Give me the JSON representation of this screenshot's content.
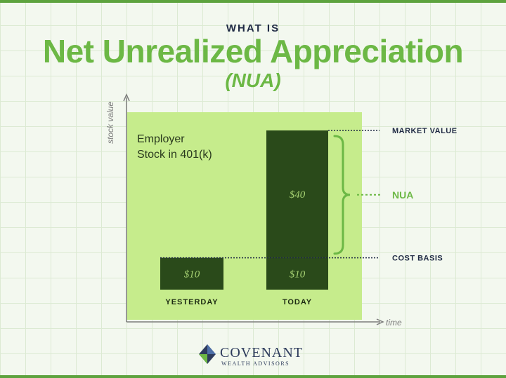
{
  "header": {
    "kicker": "WHAT IS",
    "title": "Net Unrealized Appreciation",
    "subtitle": "(NUA)"
  },
  "chart_data": {
    "type": "bar",
    "stacked": true,
    "categories": [
      "YESTERDAY",
      "TODAY"
    ],
    "series": [
      {
        "values": [
          10,
          10
        ],
        "labels": [
          "$10",
          "$10"
        ]
      },
      {
        "values": [
          0,
          40
        ],
        "labels": [
          "",
          "$40"
        ]
      }
    ],
    "ylim": [
      0,
      60
    ],
    "ylabel": "stock value",
    "xlabel": "time",
    "panel_label": "Employer Stock in 401(k)",
    "annotations": [
      {
        "text": "MARKET VALUE",
        "value": 50
      },
      {
        "text": "NUA",
        "range": [
          10,
          50
        ]
      },
      {
        "text": "COST BASIS",
        "value": 10
      }
    ]
  },
  "logo": {
    "name": "COVENANT",
    "tagline": "WEALTH ADVISORS"
  },
  "colors": {
    "accent_green": "#6cb845",
    "panel_green": "#c6ec8c",
    "bar_dark": "#2a4a1a",
    "bar_text": "#a5d072",
    "axis": "#7c7c7c",
    "navy": "#1f2a44",
    "frame": "#5da33e"
  }
}
